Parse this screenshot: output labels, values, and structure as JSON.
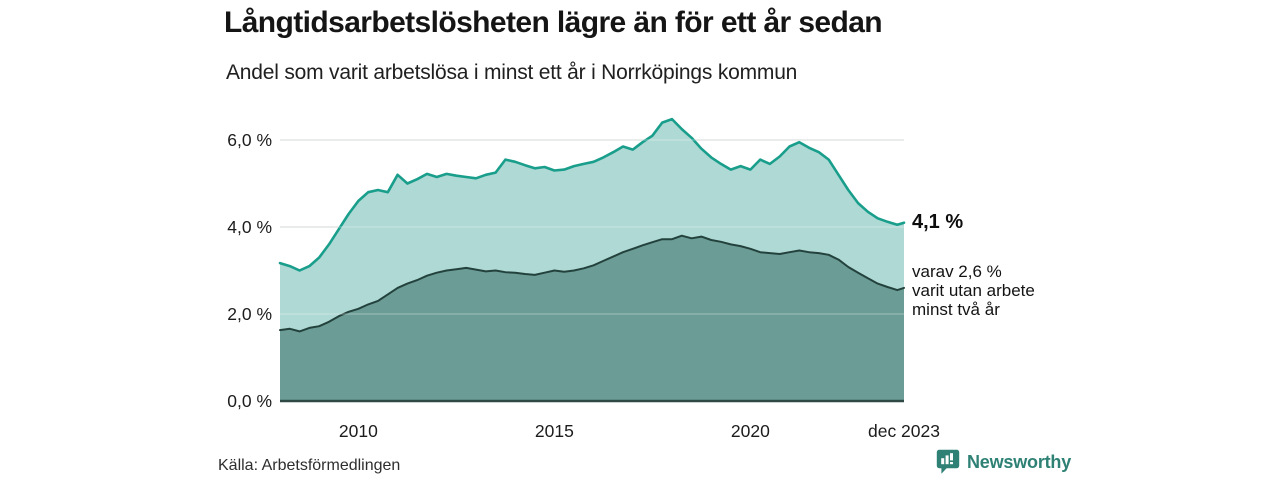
{
  "header": {
    "title": "Långtidsarbetslösheten lägre än för ett år sedan",
    "subtitle": "Andel som varit arbetslösa i minst ett år i Norrköpings kommun"
  },
  "chart_data": {
    "type": "area",
    "title": "Långtidsarbetslösheten lägre än för ett år sedan",
    "subtitle": "Andel som varit arbetslösa i minst ett år i Norrköpings kommun",
    "xlabel": "",
    "ylabel": "",
    "xlim": [
      2008.0,
      2023.92
    ],
    "ylim": [
      0,
      6.9
    ],
    "grid": true,
    "grid_color": "#dcdfde",
    "grid_overlay_color": "rgba(255,255,255,0.30)",
    "baseline_color": "#2f4a45",
    "x_ticks": [
      {
        "label": "2010",
        "year": 2010
      },
      {
        "label": "2015",
        "year": 2015
      },
      {
        "label": "2020",
        "year": 2020
      },
      {
        "label": "dec 2023",
        "year": 2023.92
      }
    ],
    "y_ticks": [
      {
        "label": "0,0 %",
        "value": 0
      },
      {
        "label": "2,0 %",
        "value": 2
      },
      {
        "label": "4,0 %",
        "value": 4
      },
      {
        "label": "6,0 %",
        "value": 6
      }
    ],
    "x": [
      2008.0,
      2008.25,
      2008.5,
      2008.75,
      2009,
      2009.25,
      2009.5,
      2009.75,
      2010,
      2010.25,
      2010.5,
      2010.75,
      2011,
      2011.25,
      2011.5,
      2011.75,
      2012,
      2012.25,
      2012.5,
      2012.75,
      2013,
      2013.25,
      2013.5,
      2013.75,
      2014,
      2014.25,
      2014.5,
      2014.75,
      2015,
      2015.25,
      2015.5,
      2015.75,
      2016,
      2016.25,
      2016.5,
      2016.75,
      2017,
      2017.25,
      2017.5,
      2017.75,
      2018,
      2018.25,
      2018.5,
      2018.75,
      2019,
      2019.25,
      2019.5,
      2019.75,
      2020,
      2020.25,
      2020.5,
      2020.75,
      2021,
      2021.25,
      2021.5,
      2021.75,
      2022,
      2022.25,
      2022.5,
      2022.75,
      2023,
      2023.25,
      2023.5,
      2023.75,
      2023.92
    ],
    "series": [
      {
        "name": "Arbetslösa minst ett år",
        "end_value_label": "4,1 %",
        "line_color": "#1a9e8c",
        "fill_color": "#aed9d4",
        "values": [
          3.17,
          3.1,
          3.0,
          3.1,
          3.3,
          3.6,
          3.95,
          4.3,
          4.6,
          4.8,
          4.85,
          4.8,
          5.2,
          5.0,
          5.1,
          5.22,
          5.15,
          5.22,
          5.18,
          5.15,
          5.12,
          5.2,
          5.25,
          5.55,
          5.5,
          5.42,
          5.35,
          5.38,
          5.3,
          5.32,
          5.4,
          5.45,
          5.5,
          5.6,
          5.72,
          5.85,
          5.78,
          5.95,
          6.1,
          6.4,
          6.48,
          6.25,
          6.05,
          5.8,
          5.6,
          5.45,
          5.32,
          5.4,
          5.32,
          5.55,
          5.45,
          5.62,
          5.85,
          5.95,
          5.82,
          5.72,
          5.55,
          5.2,
          4.85,
          4.55,
          4.35,
          4.2,
          4.12,
          4.05,
          4.1
        ]
      },
      {
        "name": "Arbetslösa minst två år",
        "end_value_label": "2,6 %",
        "line_color": "#24423d",
        "fill_color": "#6b9d96",
        "values": [
          1.63,
          1.66,
          1.6,
          1.68,
          1.72,
          1.82,
          1.95,
          2.05,
          2.12,
          2.22,
          2.3,
          2.45,
          2.6,
          2.7,
          2.78,
          2.88,
          2.95,
          3.0,
          3.03,
          3.06,
          3.02,
          2.98,
          3.0,
          2.96,
          2.95,
          2.92,
          2.9,
          2.95,
          3.0,
          2.97,
          3.0,
          3.05,
          3.12,
          3.22,
          3.32,
          3.42,
          3.5,
          3.58,
          3.65,
          3.72,
          3.72,
          3.8,
          3.74,
          3.78,
          3.7,
          3.66,
          3.6,
          3.56,
          3.5,
          3.42,
          3.4,
          3.38,
          3.42,
          3.46,
          3.42,
          3.4,
          3.36,
          3.25,
          3.08,
          2.95,
          2.82,
          2.7,
          2.62,
          2.55,
          2.6
        ]
      }
    ],
    "annotations": [
      {
        "text": "4,1 %",
        "bold": true
      },
      {
        "text": "varav 2,6 %\nvarit utan arbete\nminst två år",
        "bold": false
      }
    ],
    "legend_position": "none"
  },
  "annotation": {
    "value": "4,1 %",
    "note": "varav 2,6 %\nvarit utan arbete\nminst två år"
  },
  "footer": {
    "source": "Källa: Arbetsförmedlingen",
    "brand": "Newsworthy",
    "brand_color": "#2e8174"
  }
}
